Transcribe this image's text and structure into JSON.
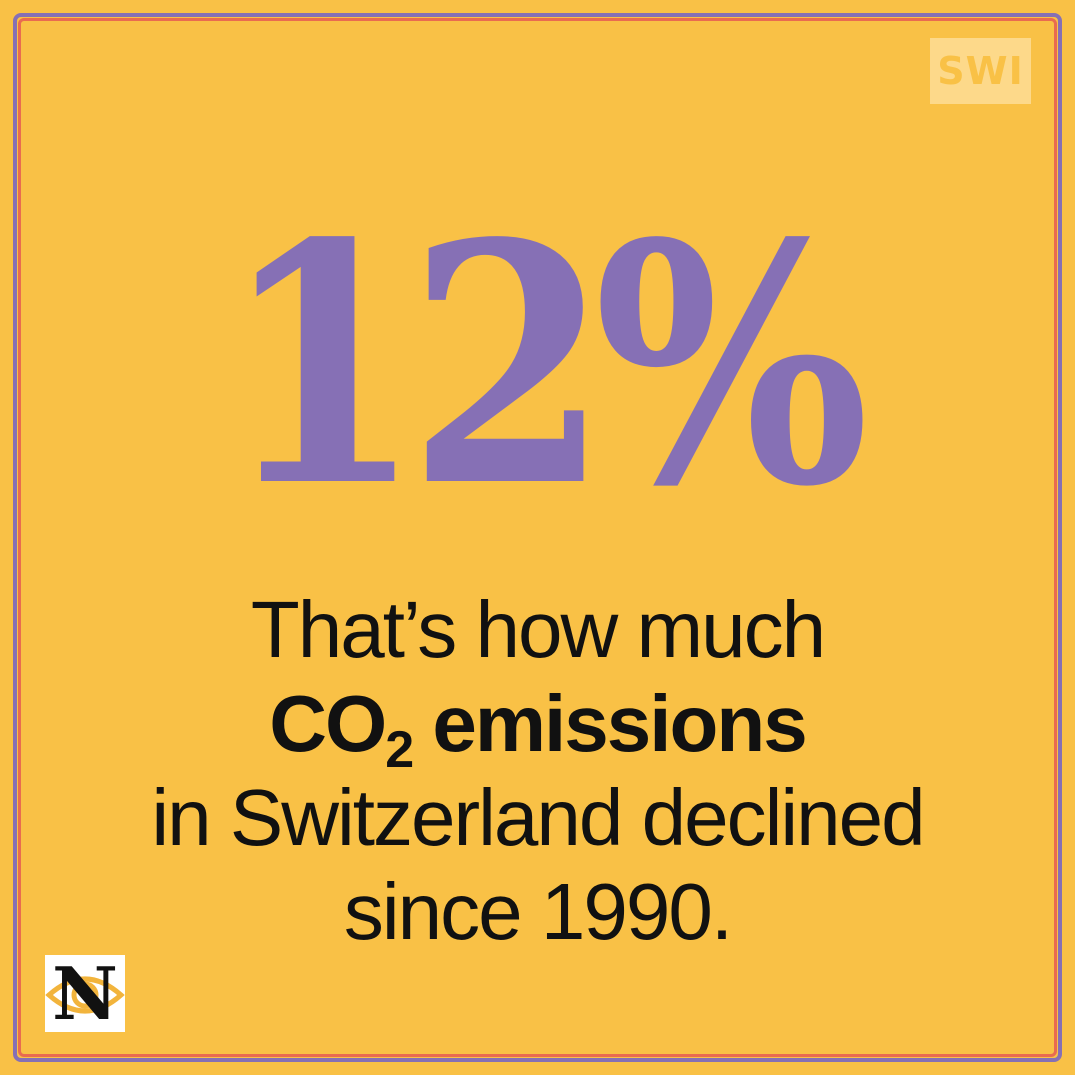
{
  "badge": {
    "text": "SWI"
  },
  "headline": {
    "value": "12%"
  },
  "caption": {
    "line1": "That’s how much",
    "line2_main": "CO",
    "line2_sub": "2",
    "line2_rest": " emissions",
    "line3": "in Switzerland declined",
    "line4": "since 1990."
  },
  "logo": {
    "letter": "N"
  },
  "colors": {
    "background": "#f9c146",
    "accent_purple": "#8670b5",
    "accent_red": "#e96b50",
    "text": "#111111"
  }
}
